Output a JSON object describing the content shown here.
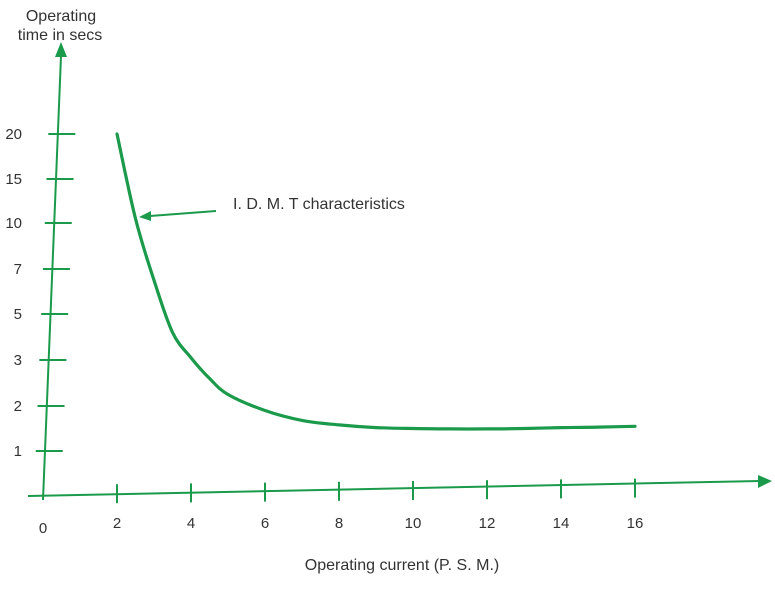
{
  "chart_data": {
    "type": "line",
    "title": "",
    "ylabel_line1": "Operating",
    "ylabel_line2": "time in secs",
    "xlabel": "Operating current (P. S. M.)",
    "x_origin_label": "0",
    "x_ticks": [
      2,
      4,
      6,
      8,
      10,
      12,
      14,
      16
    ],
    "x_tick_labels": [
      "2",
      "4",
      "6",
      "8",
      "10",
      "12",
      "14",
      "16"
    ],
    "y_ticks": [
      1,
      2,
      3,
      5,
      7,
      10,
      15,
      20
    ],
    "y_tick_labels": [
      "1",
      "2",
      "3",
      "5",
      "7",
      "10",
      "15",
      "20"
    ],
    "xlim": [
      0,
      19
    ],
    "grid": false,
    "colors": {
      "line": "#1a9a4a",
      "text": "#333333"
    },
    "series": [
      {
        "x": [
          2,
          2.5,
          3,
          3.5,
          4,
          4.5,
          5,
          6,
          7,
          8,
          9,
          10,
          11,
          12,
          13,
          14,
          15,
          16
        ],
        "y": [
          20,
          10.5,
          6.5,
          4.2,
          3.1,
          2.6,
          2.25,
          1.9,
          1.68,
          1.58,
          1.52,
          1.5,
          1.49,
          1.49,
          1.5,
          1.52,
          1.53,
          1.55
        ]
      }
    ],
    "annotations": [
      {
        "text": "I. D. M. T characteristics",
        "points_to": {
          "x": 2.5,
          "y": 10.5
        }
      }
    ]
  }
}
